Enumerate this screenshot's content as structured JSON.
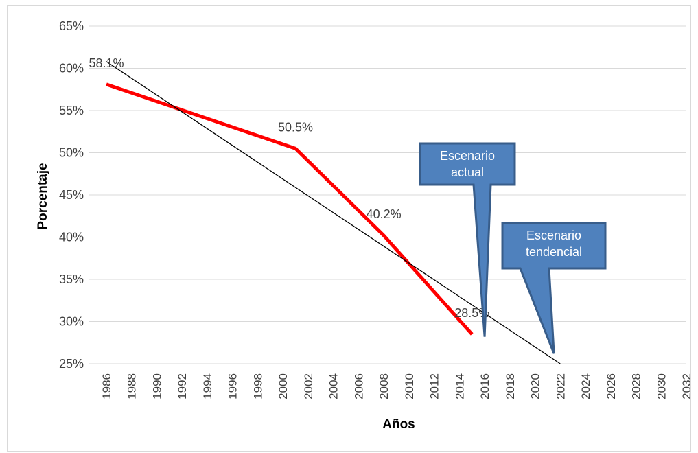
{
  "chart_data": {
    "type": "line",
    "xlabel": "Años",
    "ylabel": "Porcentaje",
    "ylim": [
      25,
      65
    ],
    "xlim": [
      1986,
      2032
    ],
    "y_ticks": [
      "25%",
      "30%",
      "35%",
      "40%",
      "45%",
      "50%",
      "55%",
      "60%",
      "65%"
    ],
    "x_ticks": [
      "1986",
      "1988",
      "1990",
      "1992",
      "1994",
      "1996",
      "1998",
      "2000",
      "2002",
      "2004",
      "2006",
      "2008",
      "2010",
      "2012",
      "2014",
      "2016",
      "2018",
      "2020",
      "2022",
      "2024",
      "2026",
      "2028",
      "2030",
      "2032"
    ],
    "grid": true,
    "series": [
      {
        "kind": "line",
        "color": "#ff0000",
        "x": [
          1986,
          2001,
          2008,
          2015
        ],
        "y": [
          58.1,
          50.5,
          40.2,
          28.5
        ],
        "labels": [
          "58.1%",
          "50.5%",
          "40.2%",
          "28.5%"
        ]
      },
      {
        "kind": "trendline",
        "color": "#000000",
        "x": [
          1986,
          2022
        ],
        "y": [
          60.8,
          25.0
        ]
      }
    ],
    "annotations": [
      {
        "text": [
          "Escenario",
          "actual"
        ],
        "x": 2016,
        "y": 28.2
      },
      {
        "text": [
          "Escenario",
          "tendencial"
        ],
        "x": 2021.5,
        "y": 26.2
      }
    ],
    "callout_color": "#4f81bd",
    "callout_border": "#385d8a"
  }
}
